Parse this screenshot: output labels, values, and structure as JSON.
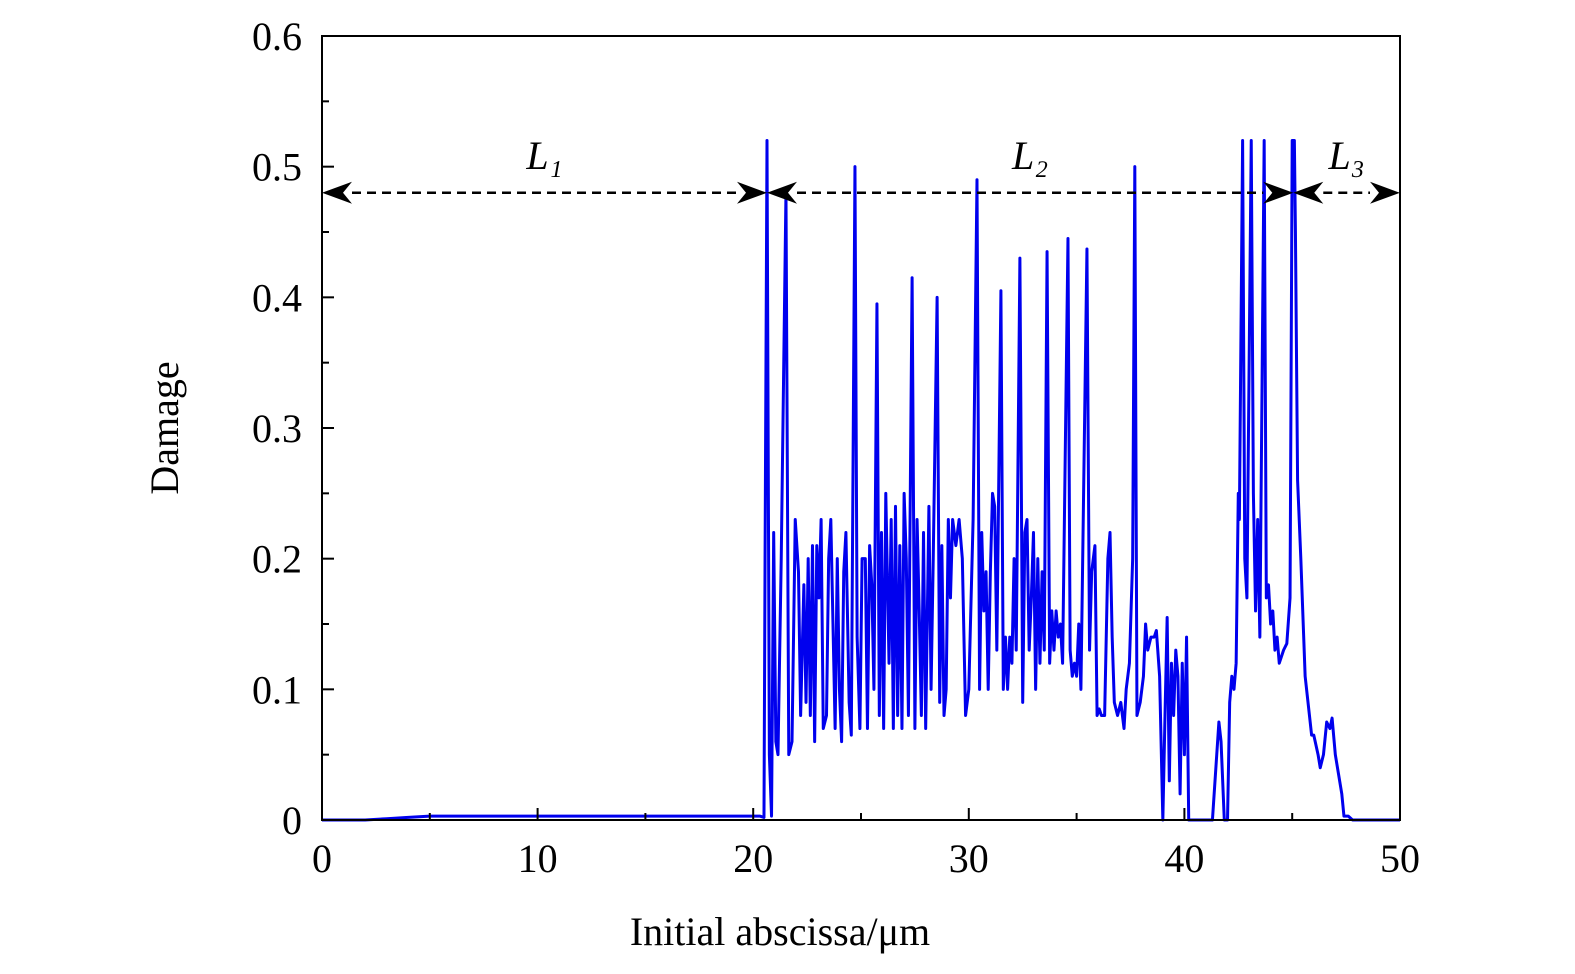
{
  "chart_data": {
    "type": "line",
    "xlabel": "Initial abscissa/μm",
    "ylabel": "Damage",
    "xlim": [
      0,
      50
    ],
    "ylim": [
      0,
      0.6
    ],
    "xticks": [
      0,
      10,
      20,
      30,
      40,
      50
    ],
    "yticks": [
      0,
      0.1,
      0.2,
      0.3,
      0.4,
      0.5,
      0.6
    ],
    "xminorticks": [
      5,
      15,
      25,
      35,
      45
    ],
    "yminorticks": [
      0.05,
      0.15,
      0.25,
      0.35,
      0.45,
      0.55
    ],
    "annotations": [
      {
        "text": "L₁",
        "x": [
          0,
          20.64
        ],
        "y": 0.48
      },
      {
        "text": "L₂",
        "x": [
          20.64,
          45.05
        ],
        "y": 0.48
      },
      {
        "text": "L₃",
        "x": [
          45.05,
          50
        ],
        "y": 0.48
      }
    ],
    "series": [
      {
        "color": "#0000ee",
        "x": [
          0,
          2,
          3,
          4,
          5,
          10,
          15,
          20.3,
          20.5,
          20.55,
          20.64,
          20.75,
          20.85,
          20.95,
          21.05,
          21.15,
          21.3,
          21.52,
          21.65,
          21.8,
          21.95,
          22.1,
          22.2,
          22.35,
          22.45,
          22.55,
          22.65,
          22.75,
          22.85,
          22.95,
          23.05,
          23.15,
          23.25,
          23.4,
          23.5,
          23.6,
          23.7,
          23.8,
          23.9,
          24.0,
          24.1,
          24.2,
          24.3,
          24.45,
          24.55,
          24.72,
          24.82,
          24.95,
          25.05,
          25.2,
          25.3,
          25.4,
          25.5,
          25.6,
          25.74,
          25.85,
          25.95,
          26.05,
          26.15,
          26.3,
          26.4,
          26.5,
          26.6,
          26.7,
          26.8,
          26.9,
          27.0,
          27.1,
          27.2,
          27.37,
          27.5,
          27.6,
          27.7,
          27.8,
          27.9,
          28.0,
          28.15,
          28.25,
          28.35,
          28.53,
          28.65,
          28.75,
          28.85,
          28.95,
          29.05,
          29.15,
          29.25,
          29.4,
          29.55,
          29.7,
          29.85,
          30.0,
          30.2,
          30.38,
          30.5,
          30.6,
          30.7,
          30.8,
          30.9,
          31.0,
          31.1,
          31.2,
          31.3,
          31.49,
          31.6,
          31.7,
          31.8,
          31.9,
          32.0,
          32.1,
          32.2,
          32.37,
          32.5,
          32.6,
          32.7,
          32.8,
          32.9,
          33.0,
          33.1,
          33.2,
          33.3,
          33.4,
          33.5,
          33.63,
          33.75,
          33.85,
          33.95,
          34.05,
          34.15,
          34.25,
          34.35,
          34.6,
          34.7,
          34.8,
          34.9,
          35.0,
          35.1,
          35.2,
          35.48,
          35.6,
          35.7,
          35.85,
          35.95,
          36.05,
          36.15,
          36.3,
          36.45,
          36.55,
          36.65,
          36.75,
          36.9,
          37.05,
          37.2,
          37.3,
          37.45,
          37.6,
          37.7,
          37.8,
          37.95,
          38.1,
          38.2,
          38.3,
          38.45,
          38.6,
          38.7,
          38.85,
          39.0,
          39.1,
          39.2,
          39.3,
          39.4,
          39.5,
          39.6,
          39.7,
          39.8,
          39.9,
          40.0,
          40.1,
          40.2,
          41.3,
          41.5,
          41.6,
          41.7,
          41.85,
          42.0,
          42.1,
          42.2,
          42.3,
          42.4,
          42.5,
          42.55,
          42.7,
          42.8,
          42.9,
          43.1,
          43.2,
          43.3,
          43.4,
          43.5,
          43.7,
          43.8,
          43.9,
          44.0,
          44.1,
          44.2,
          44.3,
          44.4,
          44.6,
          44.75,
          44.9,
          45.0,
          45.1,
          45.15,
          45.25,
          45.4,
          45.6,
          45.8,
          45.9,
          46.0,
          46.2,
          46.3,
          46.45,
          46.6,
          46.75,
          46.85,
          47.0,
          47.15,
          47.3,
          47.4,
          47.6,
          47.8,
          50
        ],
        "values": [
          0,
          0,
          0.001,
          0.002,
          0.003,
          0.003,
          0.003,
          0.003,
          0.002,
          0.2,
          0.52,
          0.05,
          0.003,
          0.22,
          0.06,
          0.05,
          0.2,
          0.48,
          0.05,
          0.06,
          0.23,
          0.19,
          0.08,
          0.18,
          0.09,
          0.2,
          0.08,
          0.21,
          0.06,
          0.21,
          0.17,
          0.23,
          0.07,
          0.08,
          0.2,
          0.23,
          0.15,
          0.07,
          0.2,
          0.1,
          0.06,
          0.19,
          0.22,
          0.09,
          0.065,
          0.5,
          0.14,
          0.07,
          0.2,
          0.2,
          0.07,
          0.21,
          0.18,
          0.1,
          0.395,
          0.08,
          0.22,
          0.07,
          0.25,
          0.12,
          0.23,
          0.07,
          0.24,
          0.08,
          0.21,
          0.07,
          0.25,
          0.2,
          0.08,
          0.415,
          0.07,
          0.23,
          0.16,
          0.08,
          0.22,
          0.07,
          0.24,
          0.1,
          0.2,
          0.4,
          0.09,
          0.21,
          0.08,
          0.1,
          0.23,
          0.17,
          0.23,
          0.21,
          0.23,
          0.2,
          0.08,
          0.1,
          0.23,
          0.49,
          0.1,
          0.22,
          0.16,
          0.19,
          0.1,
          0.19,
          0.25,
          0.24,
          0.13,
          0.405,
          0.1,
          0.14,
          0.1,
          0.14,
          0.12,
          0.2,
          0.13,
          0.43,
          0.09,
          0.22,
          0.23,
          0.13,
          0.17,
          0.22,
          0.1,
          0.2,
          0.12,
          0.19,
          0.13,
          0.435,
          0.12,
          0.16,
          0.13,
          0.16,
          0.14,
          0.15,
          0.12,
          0.445,
          0.13,
          0.11,
          0.12,
          0.11,
          0.15,
          0.1,
          0.437,
          0.13,
          0.19,
          0.21,
          0.08,
          0.085,
          0.08,
          0.08,
          0.2,
          0.22,
          0.14,
          0.09,
          0.08,
          0.09,
          0.07,
          0.1,
          0.12,
          0.2,
          0.5,
          0.08,
          0.09,
          0.11,
          0.15,
          0.13,
          0.14,
          0.14,
          0.145,
          0.11,
          0,
          0.08,
          0.155,
          0.03,
          0.12,
          0.08,
          0.13,
          0.11,
          0.02,
          0.12,
          0.05,
          0.14,
          0,
          0,
          0.05,
          0.075,
          0.06,
          0,
          0,
          0.09,
          0.11,
          0.1,
          0.12,
          0.25,
          0.23,
          0.52,
          0.2,
          0.17,
          0.52,
          0.25,
          0.16,
          0.23,
          0.14,
          0.52,
          0.17,
          0.18,
          0.15,
          0.16,
          0.13,
          0.14,
          0.12,
          0.13,
          0.135,
          0.17,
          0.52,
          0.52,
          0.45,
          0.26,
          0.2,
          0.11,
          0.08,
          0.065,
          0.065,
          0.05,
          0.04,
          0.05,
          0.075,
          0.07,
          0.078,
          0.05,
          0.035,
          0.02,
          0.003,
          0.003,
          0,
          0
        ]
      }
    ]
  }
}
